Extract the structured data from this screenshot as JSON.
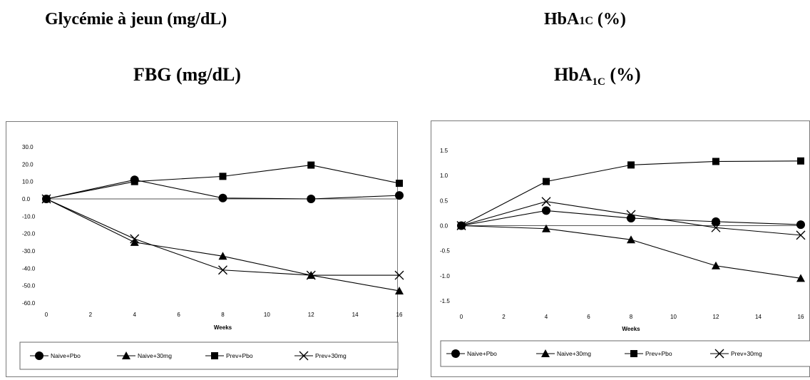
{
  "headings": {
    "fr_left": "Glycémie à jeun (mg/dL)",
    "fr_right_main": "HbA",
    "fr_right_sub": "1C",
    "fr_right_unit": " (%)",
    "en_left": "FBG (mg/dL)",
    "en_right_main": "HbA",
    "en_right_sub": "1C",
    "en_right_unit": " (%)"
  },
  "chart_data": [
    {
      "type": "line",
      "title": "FBG (mg/dL)",
      "xlabel": "Weeks",
      "ylabel": "",
      "x": [
        0,
        4,
        8,
        12,
        16
      ],
      "xticks": [
        "0",
        "2",
        "4",
        "6",
        "8",
        "10",
        "12",
        "14",
        "16"
      ],
      "xlim": [
        0,
        16
      ],
      "yticks": [
        "30.0",
        "20.0",
        "10.0",
        "0.0",
        "-10.0",
        "-20.0",
        "-30.0",
        "-40.0",
        "-50.0",
        "-60.0"
      ],
      "ylim": [
        -60,
        30
      ],
      "grid": false,
      "legend": "bottom",
      "series": [
        {
          "name": "Naive+Pbo",
          "marker": "circle",
          "values": [
            0,
            11,
            0.5,
            0,
            2
          ]
        },
        {
          "name": "Naive+30mg",
          "marker": "triangle",
          "values": [
            0,
            -25,
            -33,
            -44,
            -53
          ]
        },
        {
          "name": "Prev+Pbo",
          "marker": "square",
          "values": [
            0,
            10,
            13,
            19.5,
            9
          ]
        },
        {
          "name": "Prev+30mg",
          "marker": "x",
          "values": [
            0,
            -23,
            -41,
            -44,
            -44
          ]
        }
      ]
    },
    {
      "type": "line",
      "title": "HbA1C (%)",
      "xlabel": "Weeks",
      "ylabel": "",
      "x": [
        0,
        4,
        8,
        12,
        16
      ],
      "xticks": [
        "0",
        "2",
        "4",
        "6",
        "8",
        "10",
        "12",
        "14",
        "16"
      ],
      "xlim": [
        0,
        16
      ],
      "yticks": [
        "1.5",
        "1.0",
        "0.5",
        "0.0",
        "-0.5",
        "-1.0",
        "-1.5"
      ],
      "ylim": [
        -1.5,
        1.5
      ],
      "grid": false,
      "legend": "bottom",
      "series": [
        {
          "name": "Naive+Pbo",
          "marker": "circle",
          "values": [
            0,
            0.3,
            0.15,
            0.08,
            0.02
          ]
        },
        {
          "name": "Naive+30mg",
          "marker": "triangle",
          "values": [
            0,
            -0.06,
            -0.28,
            -0.8,
            -1.05
          ]
        },
        {
          "name": "Prev+Pbo",
          "marker": "square",
          "values": [
            0,
            0.88,
            1.21,
            1.28,
            1.29
          ]
        },
        {
          "name": "Prev+30mg",
          "marker": "x",
          "values": [
            0,
            0.48,
            0.22,
            -0.04,
            -0.19
          ]
        }
      ]
    }
  ]
}
